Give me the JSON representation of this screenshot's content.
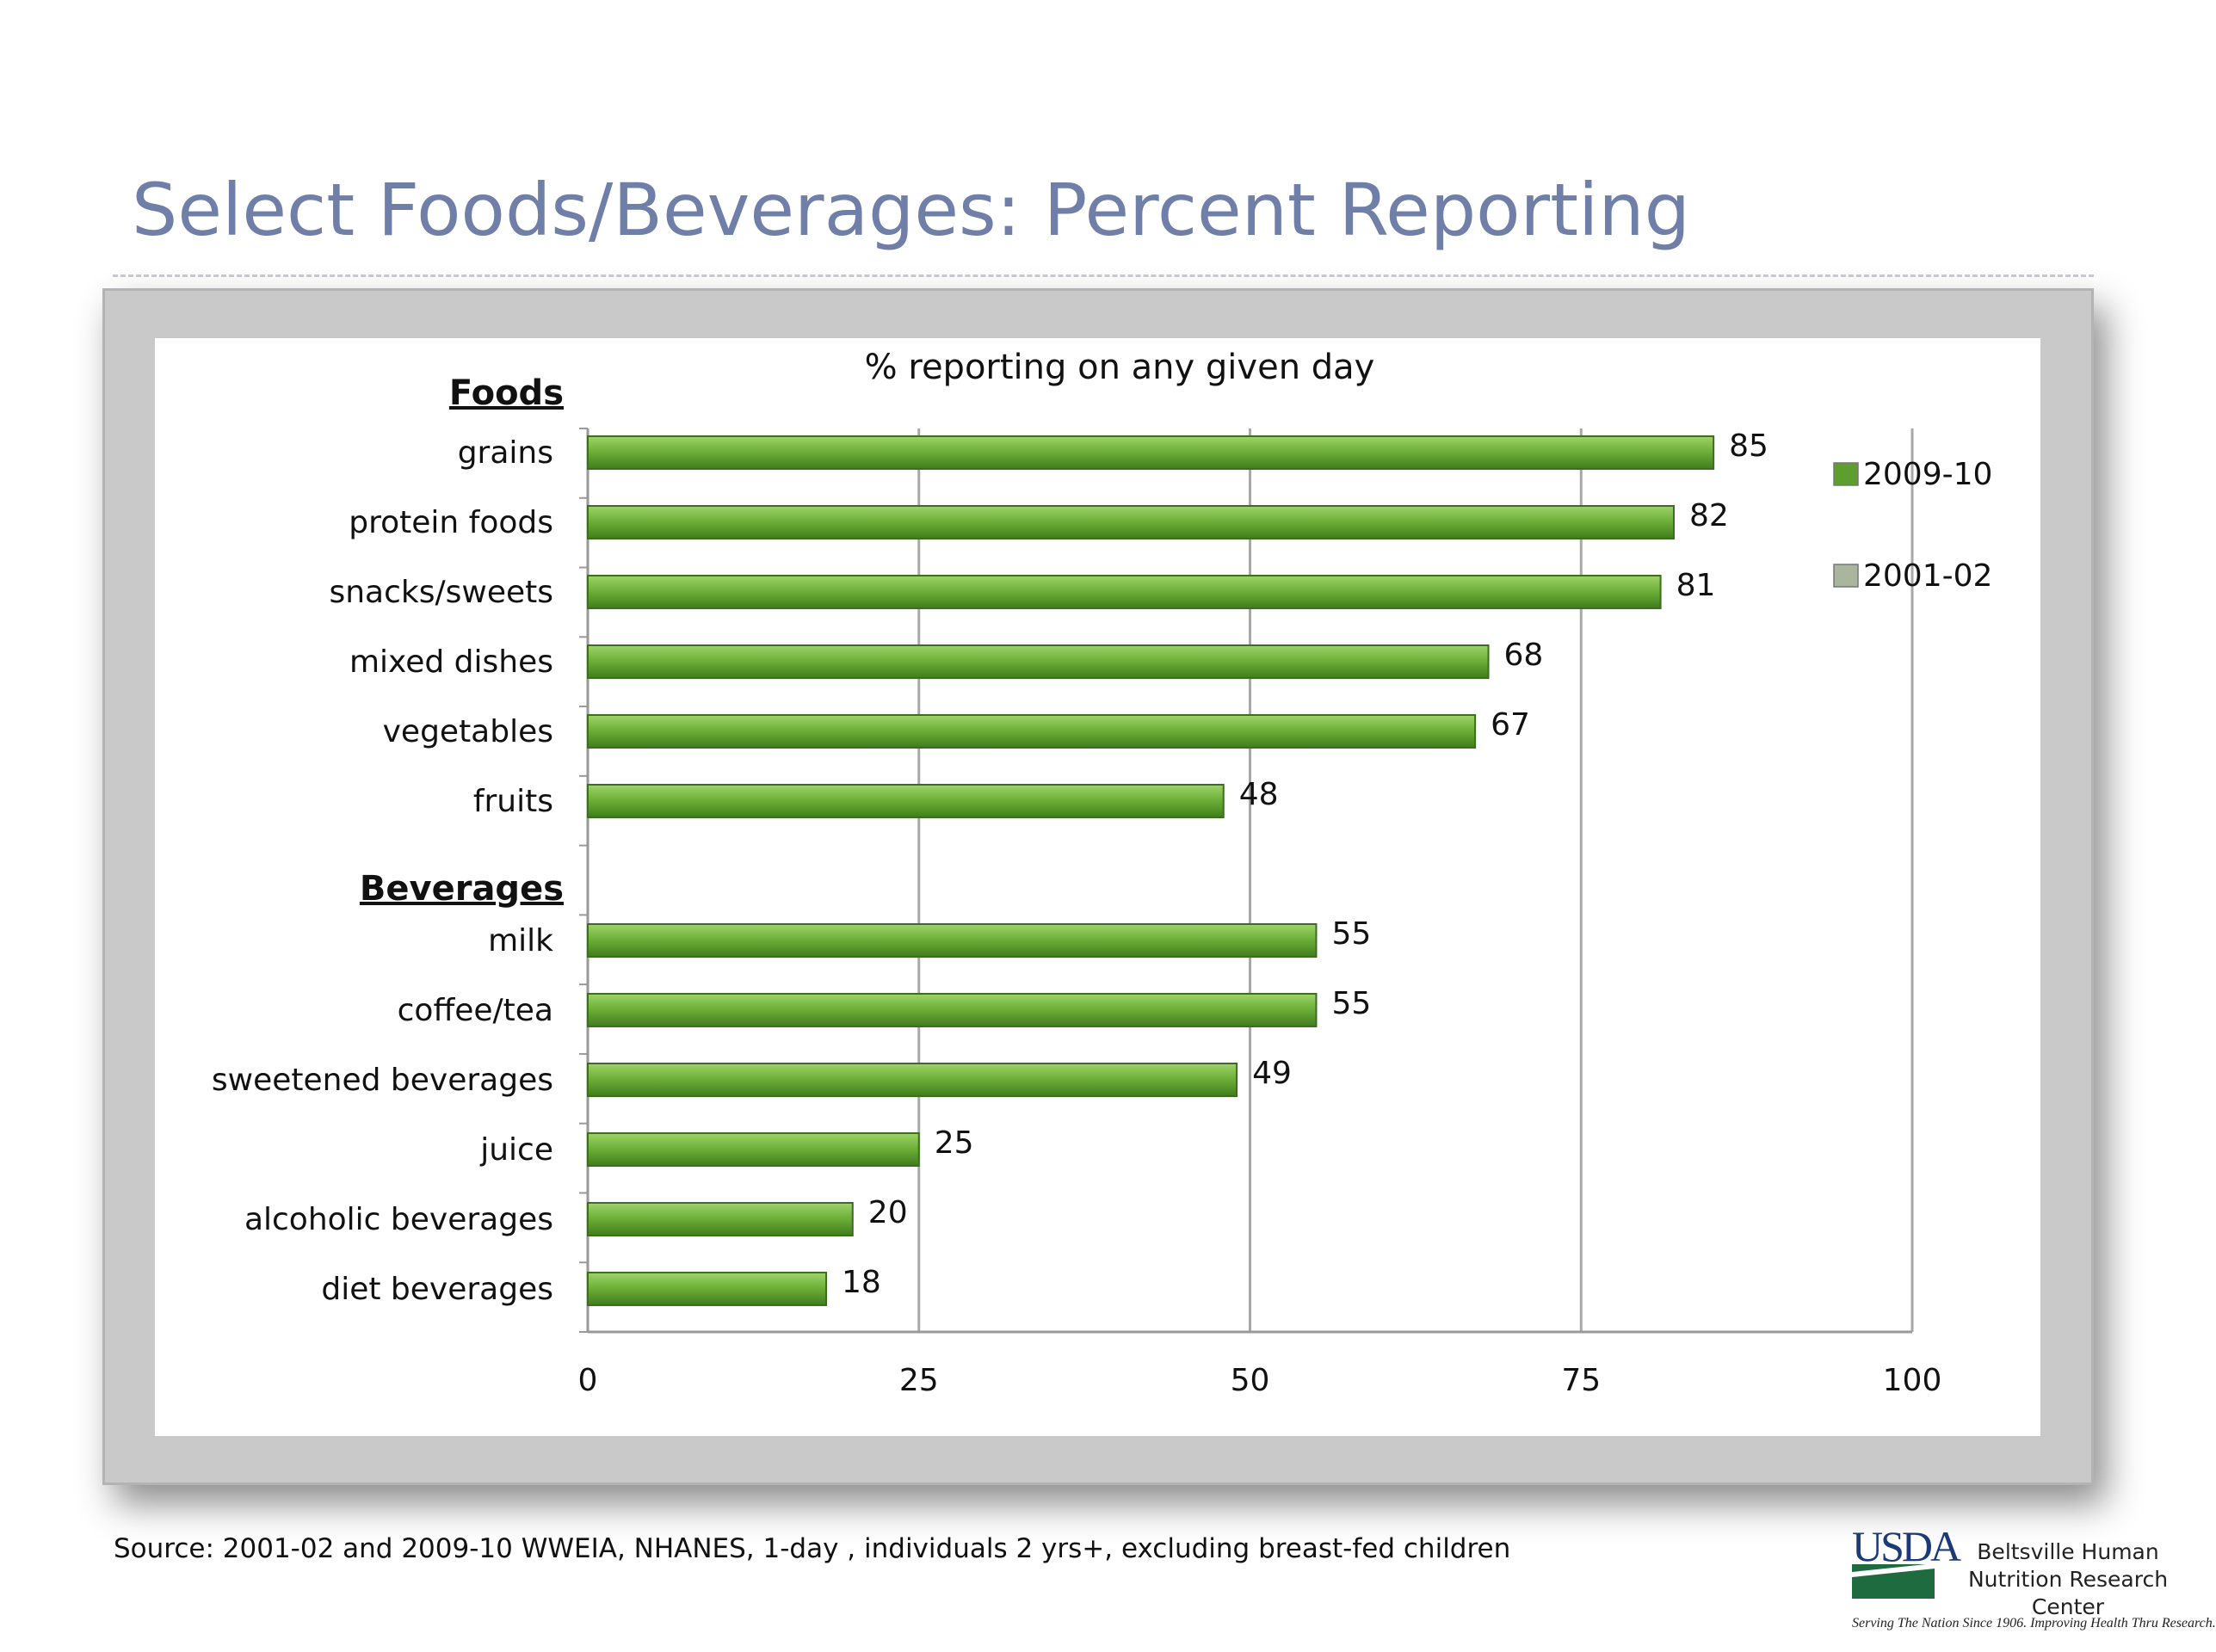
{
  "slide": {
    "title": "Select Foods/Beverages:  Percent Reporting",
    "source": "Source:  2001-02 and 2009-10 WWEIA, NHANES, 1-day , individuals 2 yrs+, excluding breast-fed children",
    "logo": {
      "mark": "USDA",
      "name": "Beltsville Human Nutrition Research Center",
      "motto": "Serving The Nation Since 1906. Improving Health Thru Research."
    }
  },
  "chart_data": {
    "type": "bar",
    "orientation": "horizontal",
    "title": "% reporting on any given day",
    "groups": [
      {
        "label": "Foods",
        "categories": [
          "grains",
          "protein foods",
          "snacks/sweets",
          "mixed dishes",
          "vegetables",
          "fruits"
        ],
        "values": [
          85,
          82,
          81,
          68,
          67,
          48
        ]
      },
      {
        "label": "Beverages",
        "categories": [
          "milk",
          "coffee/tea",
          "sweetened beverages",
          "juice",
          "alcoholic beverages",
          "diet beverages"
        ],
        "values": [
          55,
          55,
          49,
          25,
          20,
          18
        ]
      }
    ],
    "series": [
      {
        "name": "2009-10",
        "color": "#5e9e2e",
        "shown": true
      },
      {
        "name": "2001-02",
        "color": "#a9b59d",
        "shown": false
      }
    ],
    "xlim": [
      0,
      100
    ],
    "xticks": [
      0,
      25,
      50,
      75,
      100
    ],
    "grid": "vertical",
    "legend": "right",
    "data_labels": true
  }
}
